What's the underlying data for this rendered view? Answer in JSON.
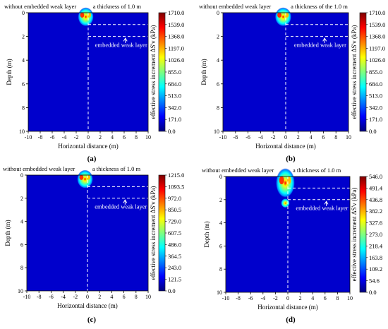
{
  "figure": {
    "colormap": [
      "#00007f",
      "#0000ff",
      "#007fff",
      "#00ffff",
      "#7fff7f",
      "#ffff00",
      "#ff7f00",
      "#ff0000",
      "#7f0000"
    ],
    "background_color": "#0000cc",
    "annotation_color": "#ffffff"
  },
  "chart_data": [
    {
      "type": "heatmap",
      "panel_label": "(a)",
      "top_label_left": "without embedded weak layer",
      "top_label_right": "a thickness of 1.0 m",
      "inset_label": "embedded weak layer",
      "xlabel": "Horizontal distance  (m)",
      "ylabel": "Depth (m)",
      "xlim": [
        -10,
        10
      ],
      "ylim": [
        10,
        0
      ],
      "xticks": [
        -10,
        -8,
        -6,
        -4,
        -2,
        0,
        2,
        4,
        6,
        8,
        10
      ],
      "yticks": [
        0,
        2,
        4,
        6,
        8,
        10
      ],
      "colorbar_label": "effective stress increment ΔS'v (kPa)",
      "colorbar_ticks": [
        "1710.0",
        "1539.0",
        "1368.0",
        "1197.0",
        "1026.0",
        "855.0",
        "684.0",
        "513.0",
        "342.0",
        "171.0",
        "0.0"
      ],
      "weak_layer_top_depth": 1.0,
      "weak_layer_bottom_depth": 2.0,
      "vertical_divider_x": 0
    },
    {
      "type": "heatmap",
      "panel_label": "(b)",
      "top_label_left": "without embedded weak layer",
      "top_label_right": "a thickness of the 1.0 m",
      "inset_label": "embedded weak layer",
      "xlabel": "Horizontal distance  (m)",
      "ylabel": "Depth (m)",
      "xlim": [
        -10,
        10
      ],
      "ylim": [
        10,
        0
      ],
      "xticks": [
        -10,
        -8,
        -6,
        -4,
        -2,
        0,
        2,
        4,
        6,
        8,
        10
      ],
      "yticks": [
        0,
        2,
        4,
        6,
        8,
        10
      ],
      "colorbar_label": "effective stress increment ΔS'v (kPa)",
      "colorbar_ticks": [
        "1710.0",
        "1539.0",
        "1368.0",
        "1197.0",
        "1026.0",
        "855.0",
        "684.0",
        "513.0",
        "342.0",
        "171.0",
        "0.0"
      ],
      "weak_layer_top_depth": 1.0,
      "weak_layer_bottom_depth": 2.0,
      "vertical_divider_x": 0
    },
    {
      "type": "heatmap",
      "panel_label": "(c)",
      "top_label_left": "without embedded weak layer",
      "top_label_right": "a thickness of 1.0 m",
      "inset_label": "embedded weak layer",
      "xlabel": "Horizontal distance  (m)",
      "ylabel": "Depth (m)",
      "xlim": [
        -10,
        10
      ],
      "ylim": [
        10,
        0
      ],
      "xticks": [
        -10,
        -8,
        -6,
        -4,
        -2,
        0,
        2,
        4,
        6,
        8,
        10
      ],
      "yticks": [
        0,
        2,
        4,
        6,
        8,
        10
      ],
      "colorbar_label": "effective stress increment ΔS'v (kPa)",
      "colorbar_ticks": [
        "1215.0",
        "1093.5",
        "972.0",
        "850.5",
        "729.0",
        "607.5",
        "486.0",
        "364.5",
        "243.0",
        "121.5",
        "0.0"
      ],
      "weak_layer_top_depth": 1.0,
      "weak_layer_bottom_depth": 2.0,
      "vertical_divider_x": 0
    },
    {
      "type": "heatmap",
      "panel_label": "(d)",
      "top_label_left": "without embedded weak layer",
      "top_label_right": "a thickness of 1.0 m",
      "inset_label": "embedded weak layer",
      "xlabel": "Horizontal distance  (m)",
      "ylabel": "Depth (m)",
      "xlim": [
        -10,
        10
      ],
      "ylim": [
        10,
        0
      ],
      "xticks": [
        -10,
        -8,
        -6,
        -4,
        -2,
        0,
        2,
        4,
        6,
        8,
        10
      ],
      "yticks": [
        0,
        2,
        4,
        6,
        8,
        10
      ],
      "colorbar_label": "effective stress increment ΔS'v (kPa)",
      "colorbar_ticks": [
        "546.0",
        "491.4",
        "436.8",
        "382.2",
        "327.6",
        "273.0",
        "218.4",
        "163.8",
        "109.2",
        "54.6",
        "0.0"
      ],
      "weak_layer_top_depth": 1.0,
      "weak_layer_bottom_depth": 2.0,
      "vertical_divider_x": 0
    }
  ]
}
